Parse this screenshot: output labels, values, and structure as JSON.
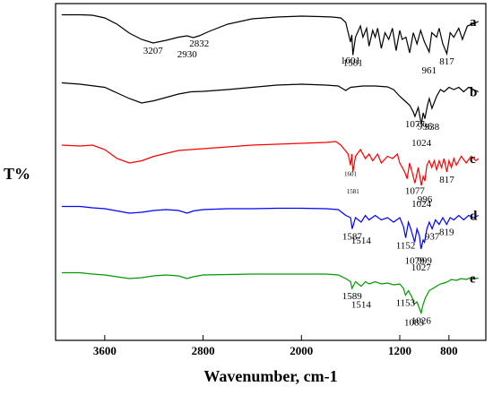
{
  "chart_data": {
    "type": "line",
    "xlabel": "Wavenumber, cm-1",
    "ylabel": "T%",
    "xlim": [
      4000,
      500
    ],
    "x_reversed": true,
    "x_ticks": [
      3600,
      2800,
      2000,
      1200,
      800
    ],
    "x_tick_labels": [
      "3600",
      "2800",
      "2000",
      "1200",
      "800"
    ],
    "grid": false,
    "legend": "letters at right end of each trace",
    "series": [
      {
        "name": "a",
        "color": "#000000",
        "points": [
          [
            3950,
            0.05
          ],
          [
            3800,
            0.05
          ],
          [
            3700,
            0.06
          ],
          [
            3600,
            0.12
          ],
          [
            3500,
            0.26
          ],
          [
            3400,
            0.46
          ],
          [
            3300,
            0.6
          ],
          [
            3207,
            0.68
          ],
          [
            3100,
            0.62
          ],
          [
            3000,
            0.55
          ],
          [
            2930,
            0.52
          ],
          [
            2880,
            0.56
          ],
          [
            2832,
            0.52
          ],
          [
            2750,
            0.42
          ],
          [
            2600,
            0.26
          ],
          [
            2400,
            0.14
          ],
          [
            2200,
            0.1
          ],
          [
            2000,
            0.08
          ],
          [
            1850,
            0.09
          ],
          [
            1750,
            0.1
          ],
          [
            1680,
            0.12
          ],
          [
            1640,
            0.22
          ],
          [
            1601,
            0.66
          ],
          [
            1590,
            0.5
          ],
          [
            1581,
            0.95
          ],
          [
            1560,
            0.55
          ],
          [
            1520,
            0.3
          ],
          [
            1500,
            0.55
          ],
          [
            1470,
            0.35
          ],
          [
            1450,
            0.75
          ],
          [
            1420,
            0.4
          ],
          [
            1400,
            0.55
          ],
          [
            1380,
            0.35
          ],
          [
            1350,
            0.8
          ],
          [
            1320,
            0.45
          ],
          [
            1290,
            0.6
          ],
          [
            1260,
            0.35
          ],
          [
            1230,
            0.85
          ],
          [
            1200,
            0.4
          ],
          [
            1180,
            0.6
          ],
          [
            1150,
            0.55
          ],
          [
            1120,
            0.9
          ],
          [
            1090,
            0.45
          ],
          [
            1060,
            0.7
          ],
          [
            1030,
            0.4
          ],
          [
            1000,
            0.65
          ],
          [
            961,
            0.88
          ],
          [
            940,
            0.45
          ],
          [
            900,
            0.55
          ],
          [
            880,
            0.35
          ],
          [
            850,
            0.7
          ],
          [
            817,
            0.92
          ],
          [
            790,
            0.45
          ],
          [
            760,
            0.55
          ],
          [
            720,
            0.35
          ],
          [
            690,
            0.6
          ],
          [
            650,
            0.3
          ],
          [
            600,
            0.25
          ],
          [
            560,
            0.2
          ]
        ],
        "peak_labels": [
          {
            "text": "3207",
            "x": 3207
          },
          {
            "text": "2930",
            "x": 2930
          },
          {
            "text": "2832",
            "x": 2832
          },
          {
            "text": "1601",
            "x": 1601
          },
          {
            "text": "1581",
            "x": 1581
          },
          {
            "text": "961",
            "x": 961
          },
          {
            "text": "817",
            "x": 817
          }
        ]
      },
      {
        "name": "b",
        "color": "#000000",
        "points": [
          [
            3950,
            0.05
          ],
          [
            3800,
            0.08
          ],
          [
            3600,
            0.15
          ],
          [
            3400,
            0.4
          ],
          [
            3300,
            0.5
          ],
          [
            3200,
            0.45
          ],
          [
            3000,
            0.3
          ],
          [
            2900,
            0.25
          ],
          [
            2800,
            0.24
          ],
          [
            2600,
            0.2
          ],
          [
            2400,
            0.15
          ],
          [
            2200,
            0.1
          ],
          [
            2000,
            0.08
          ],
          [
            1800,
            0.1
          ],
          [
            1700,
            0.12
          ],
          [
            1640,
            0.22
          ],
          [
            1600,
            0.15
          ],
          [
            1500,
            0.12
          ],
          [
            1400,
            0.12
          ],
          [
            1300,
            0.14
          ],
          [
            1250,
            0.2
          ],
          [
            1200,
            0.35
          ],
          [
            1160,
            0.45
          ],
          [
            1120,
            0.55
          ],
          [
            1090,
            0.7
          ],
          [
            1077,
            0.8
          ],
          [
            1050,
            0.6
          ],
          [
            1024,
            0.98
          ],
          [
            1010,
            0.72
          ],
          [
            996,
            0.85
          ],
          [
            975,
            0.55
          ],
          [
            960,
            0.4
          ],
          [
            938,
            0.62
          ],
          [
            900,
            0.35
          ],
          [
            870,
            0.2
          ],
          [
            840,
            0.25
          ],
          [
            800,
            0.15
          ],
          [
            760,
            0.2
          ],
          [
            720,
            0.15
          ],
          [
            680,
            0.25
          ],
          [
            640,
            0.15
          ],
          [
            600,
            0.2
          ],
          [
            560,
            0.25
          ]
        ],
        "peak_labels": [
          {
            "text": "1077",
            "x": 1077
          },
          {
            "text": "938",
            "x": 938
          },
          {
            "text": "996",
            "x": 996
          },
          {
            "text": "1024",
            "x": 1024
          }
        ]
      },
      {
        "name": "c",
        "color": "#ff0000",
        "points": [
          [
            3950,
            0.1
          ],
          [
            3800,
            0.12
          ],
          [
            3700,
            0.1
          ],
          [
            3600,
            0.2
          ],
          [
            3500,
            0.4
          ],
          [
            3400,
            0.5
          ],
          [
            3300,
            0.45
          ],
          [
            3200,
            0.35
          ],
          [
            3000,
            0.22
          ],
          [
            2800,
            0.18
          ],
          [
            2600,
            0.14
          ],
          [
            2400,
            0.1
          ],
          [
            2200,
            0.08
          ],
          [
            2000,
            0.06
          ],
          [
            1800,
            0.04
          ],
          [
            1720,
            0.02
          ],
          [
            1680,
            0.1
          ],
          [
            1620,
            0.3
          ],
          [
            1601,
            0.55
          ],
          [
            1590,
            0.3
          ],
          [
            1581,
            0.7
          ],
          [
            1560,
            0.35
          ],
          [
            1520,
            0.2
          ],
          [
            1480,
            0.4
          ],
          [
            1450,
            0.3
          ],
          [
            1420,
            0.45
          ],
          [
            1380,
            0.3
          ],
          [
            1350,
            0.5
          ],
          [
            1300,
            0.35
          ],
          [
            1260,
            0.4
          ],
          [
            1220,
            0.3
          ],
          [
            1200,
            0.5
          ],
          [
            1160,
            0.7
          ],
          [
            1140,
            0.85
          ],
          [
            1120,
            0.5
          ],
          [
            1100,
            0.7
          ],
          [
            1077,
            0.95
          ],
          [
            1050,
            0.6
          ],
          [
            1024,
            1.0
          ],
          [
            1010,
            0.8
          ],
          [
            996,
            0.9
          ],
          [
            980,
            0.55
          ],
          [
            960,
            0.45
          ],
          [
            940,
            0.6
          ],
          [
            920,
            0.45
          ],
          [
            900,
            0.65
          ],
          [
            880,
            0.45
          ],
          [
            860,
            0.6
          ],
          [
            840,
            0.4
          ],
          [
            817,
            0.7
          ],
          [
            800,
            0.45
          ],
          [
            780,
            0.6
          ],
          [
            760,
            0.4
          ],
          [
            740,
            0.55
          ],
          [
            700,
            0.35
          ],
          [
            660,
            0.5
          ],
          [
            620,
            0.35
          ],
          [
            580,
            0.45
          ],
          [
            560,
            0.4
          ]
        ],
        "peak_labels": [
          {
            "text": "1601",
            "x": 1601
          },
          {
            "text": "1581",
            "x": 1581
          },
          {
            "text": "1077",
            "x": 1077
          },
          {
            "text": "996",
            "x": 996
          },
          {
            "text": "817",
            "x": 817
          },
          {
            "text": "1024",
            "x": 1024
          }
        ]
      },
      {
        "name": "d",
        "color": "#0000ff",
        "points": [
          [
            3950,
            0.05
          ],
          [
            3800,
            0.05
          ],
          [
            3700,
            0.08
          ],
          [
            3600,
            0.1
          ],
          [
            3500,
            0.15
          ],
          [
            3400,
            0.2
          ],
          [
            3300,
            0.18
          ],
          [
            3200,
            0.14
          ],
          [
            3100,
            0.12
          ],
          [
            3000,
            0.14
          ],
          [
            2930,
            0.2
          ],
          [
            2880,
            0.15
          ],
          [
            2800,
            0.12
          ],
          [
            2600,
            0.1
          ],
          [
            2400,
            0.1
          ],
          [
            2200,
            0.09
          ],
          [
            2000,
            0.09
          ],
          [
            1800,
            0.1
          ],
          [
            1700,
            0.12
          ],
          [
            1640,
            0.25
          ],
          [
            1600,
            0.3
          ],
          [
            1587,
            0.55
          ],
          [
            1560,
            0.3
          ],
          [
            1514,
            0.4
          ],
          [
            1480,
            0.25
          ],
          [
            1450,
            0.35
          ],
          [
            1400,
            0.25
          ],
          [
            1350,
            0.35
          ],
          [
            1300,
            0.3
          ],
          [
            1250,
            0.4
          ],
          [
            1200,
            0.3
          ],
          [
            1170,
            0.5
          ],
          [
            1152,
            0.75
          ],
          [
            1130,
            0.4
          ],
          [
            1110,
            0.55
          ],
          [
            1079,
            0.85
          ],
          [
            1060,
            0.55
          ],
          [
            1040,
            0.7
          ],
          [
            1027,
            1.0
          ],
          [
            1010,
            0.8
          ],
          [
            999,
            0.85
          ],
          [
            980,
            0.55
          ],
          [
            960,
            0.4
          ],
          [
            937,
            0.55
          ],
          [
            910,
            0.35
          ],
          [
            880,
            0.45
          ],
          [
            850,
            0.3
          ],
          [
            819,
            0.45
          ],
          [
            790,
            0.3
          ],
          [
            760,
            0.35
          ],
          [
            720,
            0.25
          ],
          [
            680,
            0.35
          ],
          [
            640,
            0.25
          ],
          [
            600,
            0.3
          ],
          [
            560,
            0.25
          ]
        ],
        "peak_labels": [
          {
            "text": "1587",
            "x": 1587
          },
          {
            "text": "1514",
            "x": 1514
          },
          {
            "text": "1152",
            "x": 1152
          },
          {
            "text": "1079",
            "x": 1079
          },
          {
            "text": "937",
            "x": 937
          },
          {
            "text": "999",
            "x": 999
          },
          {
            "text": "819",
            "x": 819
          },
          {
            "text": "1027",
            "x": 1027
          }
        ]
      },
      {
        "name": "e",
        "color": "#009900",
        "points": [
          [
            3950,
            0.05
          ],
          [
            3800,
            0.05
          ],
          [
            3700,
            0.08
          ],
          [
            3600,
            0.1
          ],
          [
            3500,
            0.14
          ],
          [
            3400,
            0.18
          ],
          [
            3300,
            0.16
          ],
          [
            3200,
            0.12
          ],
          [
            3100,
            0.1
          ],
          [
            3000,
            0.12
          ],
          [
            2930,
            0.18
          ],
          [
            2880,
            0.14
          ],
          [
            2800,
            0.1
          ],
          [
            2600,
            0.09
          ],
          [
            2400,
            0.08
          ],
          [
            2200,
            0.08
          ],
          [
            2000,
            0.08
          ],
          [
            1800,
            0.08
          ],
          [
            1700,
            0.1
          ],
          [
            1640,
            0.18
          ],
          [
            1600,
            0.25
          ],
          [
            1589,
            0.4
          ],
          [
            1560,
            0.25
          ],
          [
            1514,
            0.35
          ],
          [
            1480,
            0.25
          ],
          [
            1450,
            0.3
          ],
          [
            1400,
            0.25
          ],
          [
            1350,
            0.3
          ],
          [
            1300,
            0.28
          ],
          [
            1250,
            0.32
          ],
          [
            1200,
            0.3
          ],
          [
            1170,
            0.4
          ],
          [
            1153,
            0.55
          ],
          [
            1130,
            0.45
          ],
          [
            1100,
            0.6
          ],
          [
            1083,
            0.75
          ],
          [
            1060,
            0.7
          ],
          [
            1040,
            0.85
          ],
          [
            1026,
            0.95
          ],
          [
            1010,
            0.75
          ],
          [
            990,
            0.6
          ],
          [
            960,
            0.45
          ],
          [
            930,
            0.4
          ],
          [
            900,
            0.35
          ],
          [
            870,
            0.3
          ],
          [
            840,
            0.28
          ],
          [
            810,
            0.25
          ],
          [
            780,
            0.2
          ],
          [
            740,
            0.22
          ],
          [
            700,
            0.18
          ],
          [
            660,
            0.2
          ],
          [
            620,
            0.16
          ],
          [
            580,
            0.18
          ],
          [
            560,
            0.17
          ]
        ],
        "peak_labels": [
          {
            "text": "1589",
            "x": 1589
          },
          {
            "text": "1514",
            "x": 1514
          },
          {
            "text": "1153",
            "x": 1153
          },
          {
            "text": "1083",
            "x": 1083
          },
          {
            "text": "1026",
            "x": 1026
          }
        ]
      }
    ]
  }
}
